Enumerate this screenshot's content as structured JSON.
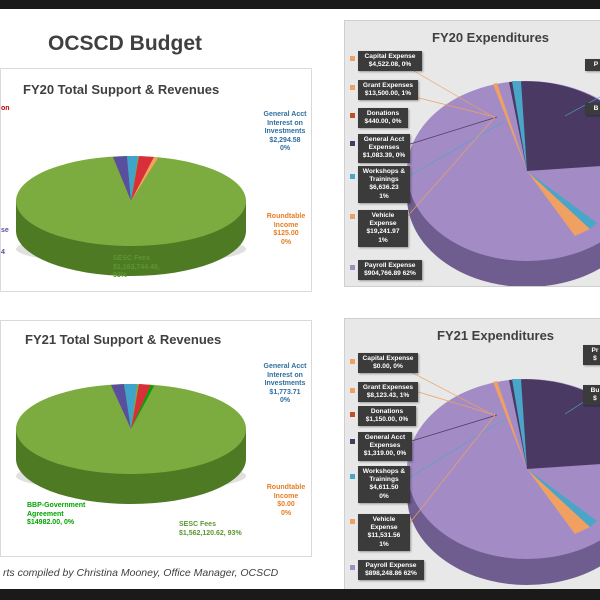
{
  "slide_title": "OCSCD Budget",
  "footer": "rts compiled by Christina Mooney, Office Manager, OCSCD",
  "fy20_support": {
    "title": "FY20 Total Support & Revenues",
    "labels": {
      "general_acct": "General Acct\nInterest on\nInvestments\n$2,294.58\n0%",
      "roundtable": "Roundtable\nIncome\n$125.00\n0%",
      "sesc_fees": "SESC Fees\n$1,163,744.49,\n93%",
      "cut_red": "on",
      "cut_purple": "se",
      "cut_small": "4"
    }
  },
  "fy21_support": {
    "title": "FY21 Total Support & Revenues",
    "labels": {
      "general_acct": "General Acct\nInterest on\nInvestments\n$1,773.71\n0%",
      "roundtable": "Roundtable\nIncome\n$0.00\n0%",
      "sesc_fees": "SESC Fees\n$1,562,120.62, 93%",
      "bbp": "BBP-Government\nAgreement\n$14982.00, 0%"
    }
  },
  "fy20_expenditures": {
    "title": "FY20 Expenditures",
    "tags": [
      {
        "key": "capital",
        "text": "Capital Expense\n$4,522.08, 0%"
      },
      {
        "key": "grant",
        "text": "Grant Expenses\n$13,500.00, 1%"
      },
      {
        "key": "donations",
        "text": "Donations\n$440.00, 0%"
      },
      {
        "key": "general",
        "text": "General Acct\nExpenses\n$1,083.39, 0%"
      },
      {
        "key": "workshops",
        "text": "Workshops &\nTrainings\n$6,636.23\n1%"
      },
      {
        "key": "vehicle",
        "text": "Vehicle\nExpense\n$19,241.97\n1%"
      },
      {
        "key": "payroll",
        "text": "Payroll Expense\n$904,766.89 62%"
      }
    ],
    "right_tags": [
      "P",
      "B"
    ]
  },
  "fy21_expenditures": {
    "title": "FY21 Expenditures",
    "tags": [
      {
        "key": "capital",
        "text": "Capital Expense\n$0.00, 0%"
      },
      {
        "key": "grant",
        "text": "Grant Expenses\n$8,123.43, 1%"
      },
      {
        "key": "donations",
        "text": "Donations\n$1,150.00, 0%"
      },
      {
        "key": "general",
        "text": "General Acct\nExpenses\n$1,319.00, 0%"
      },
      {
        "key": "workshops",
        "text": "Workshops &\nTrainings\n$4,611.50\n0%"
      },
      {
        "key": "vehicle",
        "text": "Vehicle\nExpense\n$11,531.56\n1%"
      },
      {
        "key": "payroll",
        "text": "Payroll Expense\n$898,248.86 62%"
      }
    ],
    "right_tags": [
      "Pr\n$",
      "Bu\n$"
    ]
  },
  "colors": {
    "green": "#77a83a",
    "payroll_purple": "#a38cc6",
    "dark_purple": "#4a3a63",
    "teal": "#4aa6c8",
    "orange": "#f0a060",
    "red": "#e0303a"
  }
}
